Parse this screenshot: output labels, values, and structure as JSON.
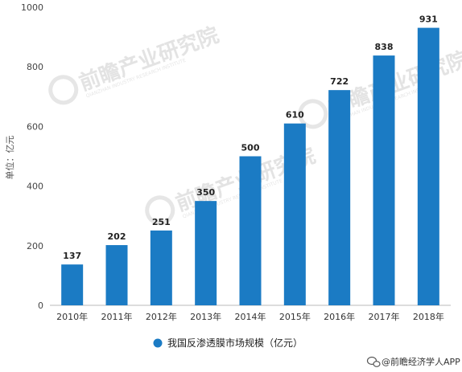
{
  "chart_data": {
    "type": "bar",
    "categories": [
      "2010年",
      "2011年",
      "2012年",
      "2013年",
      "2014年",
      "2015年",
      "2016年",
      "2017年",
      "2018年"
    ],
    "values": [
      137,
      202,
      251,
      350,
      500,
      610,
      722,
      838,
      931
    ],
    "ylabel": "单位：亿元",
    "xlabel": "",
    "ylim": [
      0,
      1000
    ],
    "yticks": [
      0,
      200,
      400,
      600,
      800,
      1000
    ],
    "grid": false,
    "legend": {
      "position": "bottom",
      "entries": [
        "我国反渗透膜市场规模（亿元）"
      ]
    },
    "bar_color": "#1b7bc4"
  },
  "watermark": {
    "text": "前瞻产业研究院",
    "subtext": "QIANZHAN INDUSTRY RESEARCH INSTITUTE"
  },
  "source": {
    "text": "@前瞻经济学人APP",
    "icon": "wechat-icon"
  }
}
